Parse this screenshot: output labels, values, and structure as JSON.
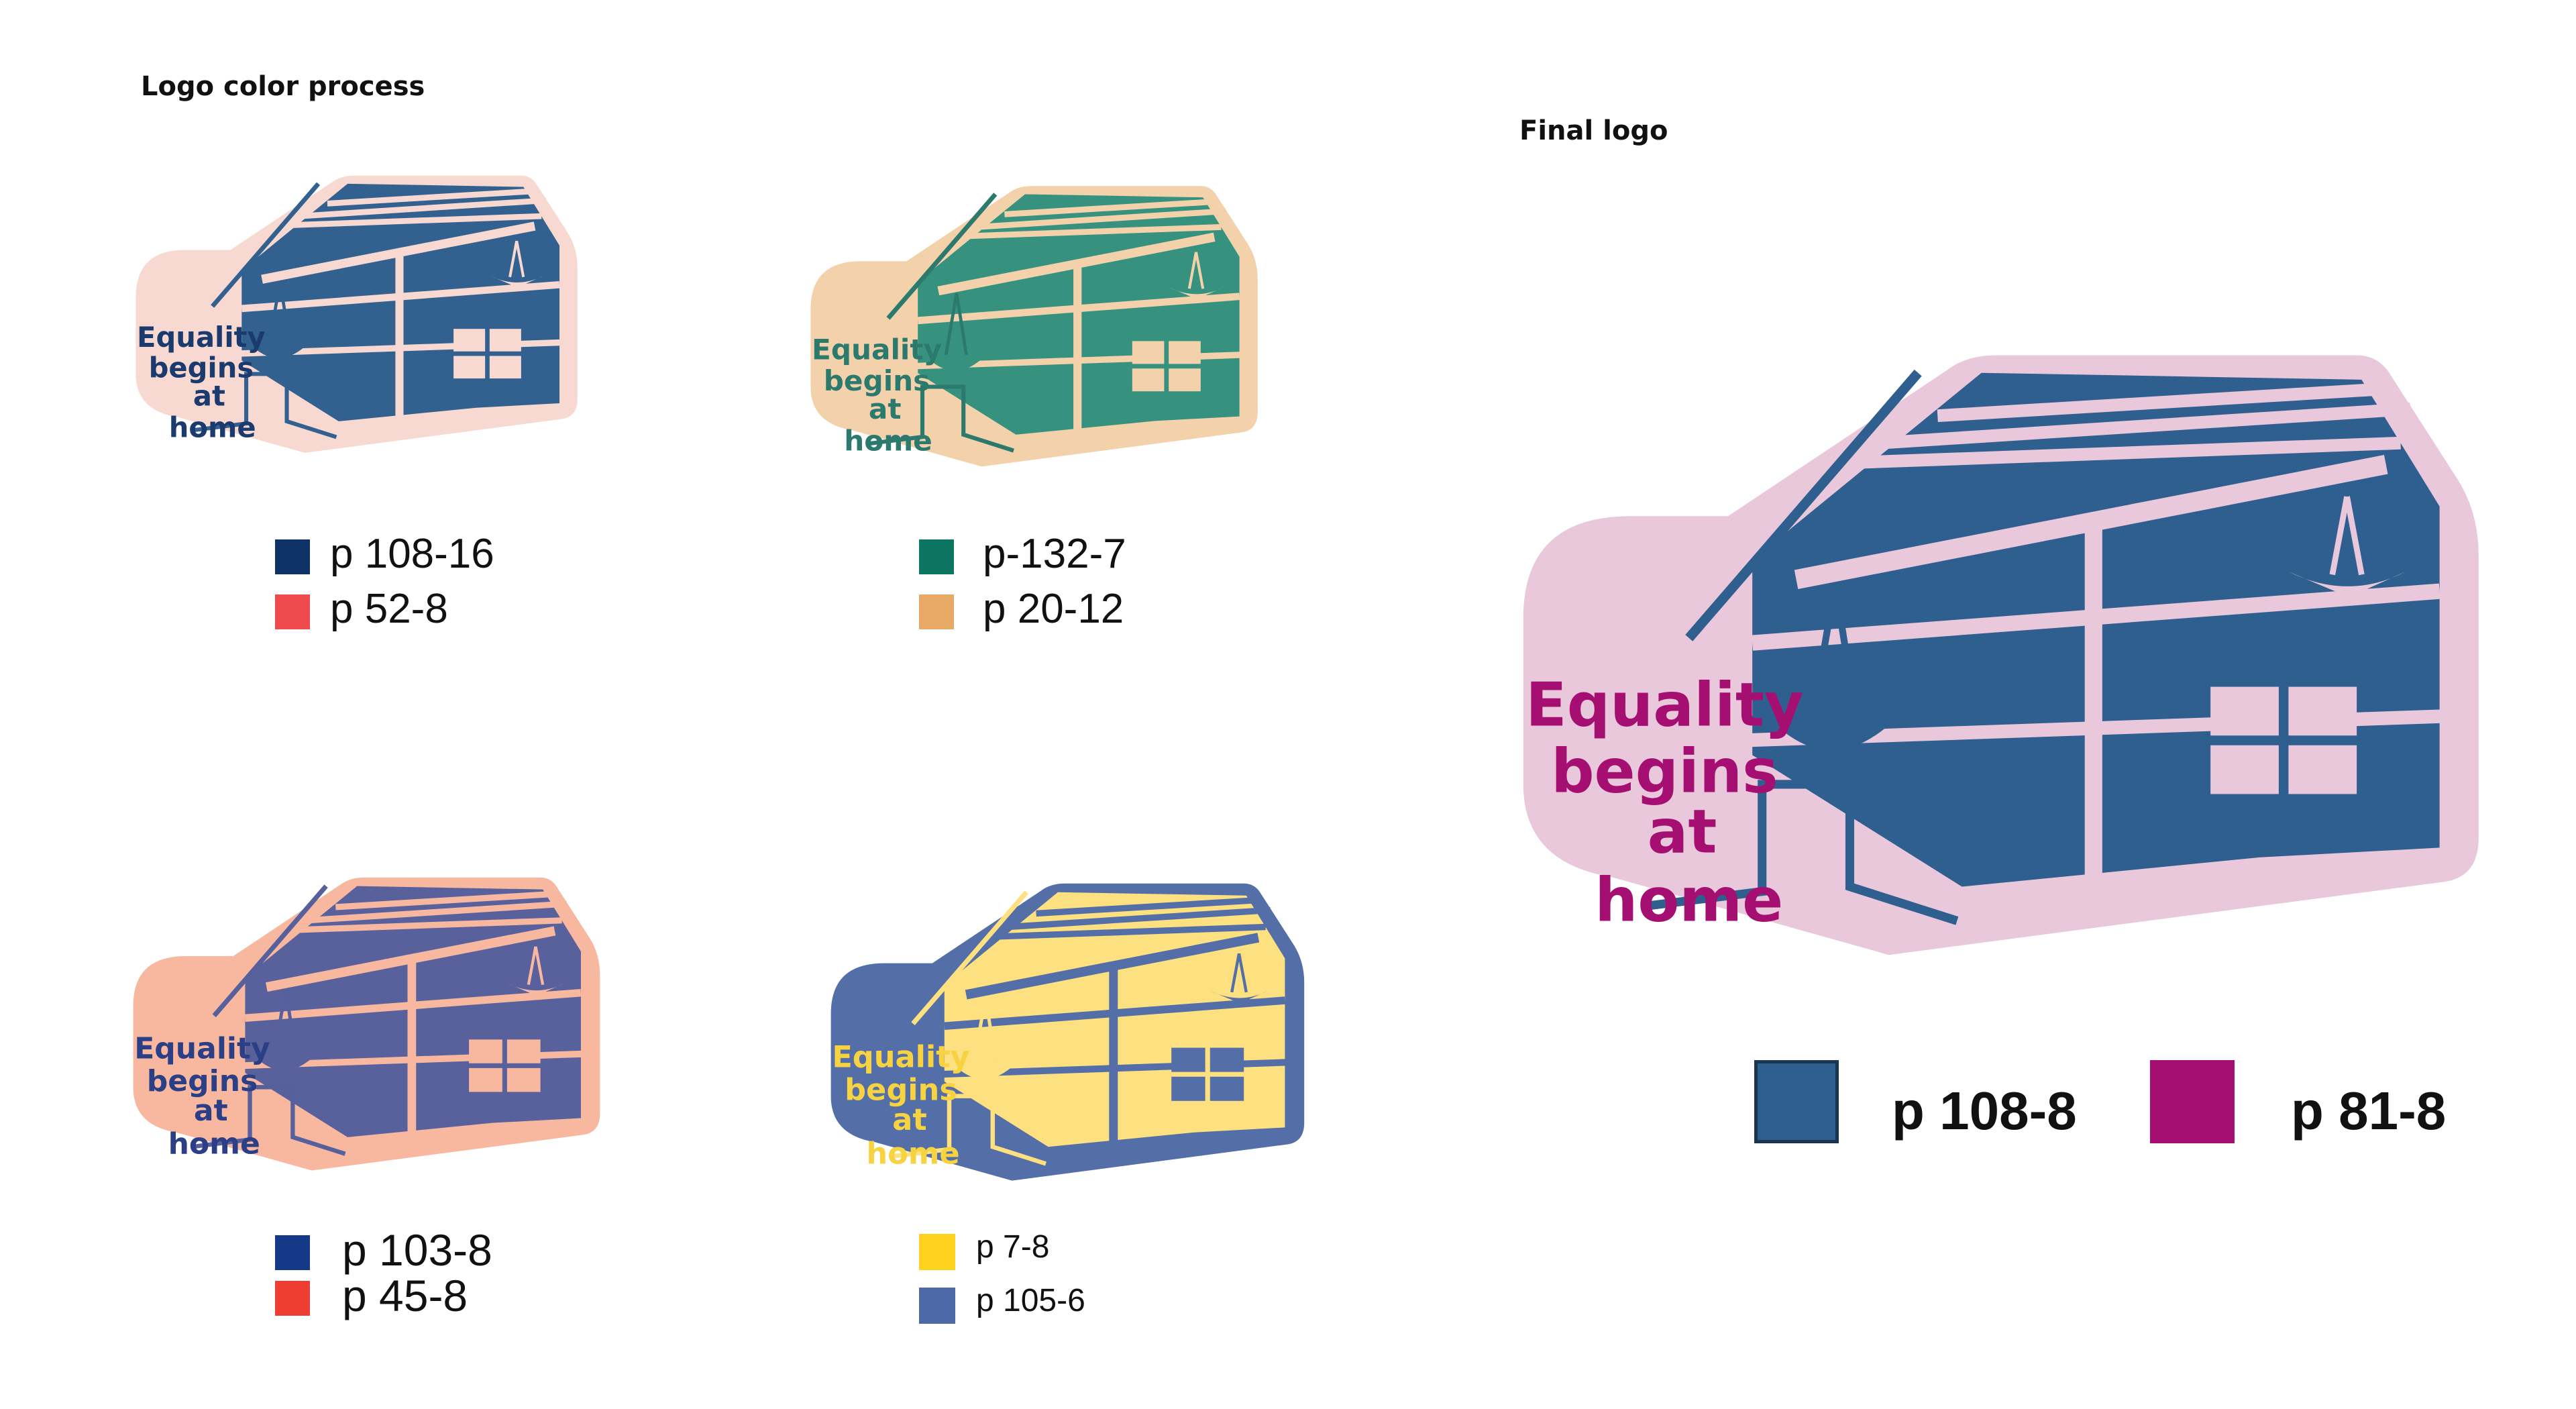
{
  "headings": {
    "process": "Logo color process",
    "final": "Final logo"
  },
  "motto": {
    "line1": "Equality",
    "line2": "begins",
    "line3": "at",
    "line4": "home"
  },
  "variants": [
    {
      "name": "variant-1",
      "colors": {
        "background": "#f7d9d1",
        "house": "#33618f",
        "accent": "#f7d9d1",
        "lines": "#33618f",
        "text": "#1b3a6e"
      },
      "legend": [
        {
          "label": "p 108-16",
          "color": "#0f3366"
        },
        {
          "label": "p 52-8",
          "color": "#ef4b4f"
        }
      ]
    },
    {
      "name": "variant-2",
      "colors": {
        "background": "#f3d2ab",
        "house": "#36927f",
        "accent": "#f3d2ab",
        "lines": "#2c7a6e",
        "text": "#2c7a6e"
      },
      "legend": [
        {
          "label": "p-132-7",
          "color": "#0b7561"
        },
        {
          "label": "p 20-12",
          "color": "#e8a966"
        }
      ]
    },
    {
      "name": "variant-3",
      "colors": {
        "background": "#f8b89f",
        "house": "#59619c",
        "accent": "#f8b89f",
        "lines": "#55609c",
        "text": "#2b3f87"
      },
      "legend": [
        {
          "label": "p 103-8",
          "color": "#143a87"
        },
        {
          "label": "p 45-8",
          "color": "#ee3e32"
        }
      ]
    },
    {
      "name": "variant-4",
      "colors": {
        "background": "#546ea8",
        "house": "#fde07f",
        "accent": "#546ea8",
        "lines": "#fde07f",
        "text": "#f7d341"
      },
      "legend": [
        {
          "label": "p 7-8",
          "color": "#ffd21f"
        },
        {
          "label": "p 105-6",
          "color": "#4d6aa6"
        }
      ]
    }
  ],
  "final": {
    "colors": {
      "background": "#e9c8dc",
      "house": "#2f5f8e",
      "accent": "#e9c8dc",
      "lines": "#2f5f8e",
      "text": "#a60f72"
    },
    "legend": [
      {
        "label": "p 108-8",
        "color": "#2f5f8e"
      },
      {
        "label": "p 81-8",
        "color": "#a60f72"
      }
    ]
  }
}
